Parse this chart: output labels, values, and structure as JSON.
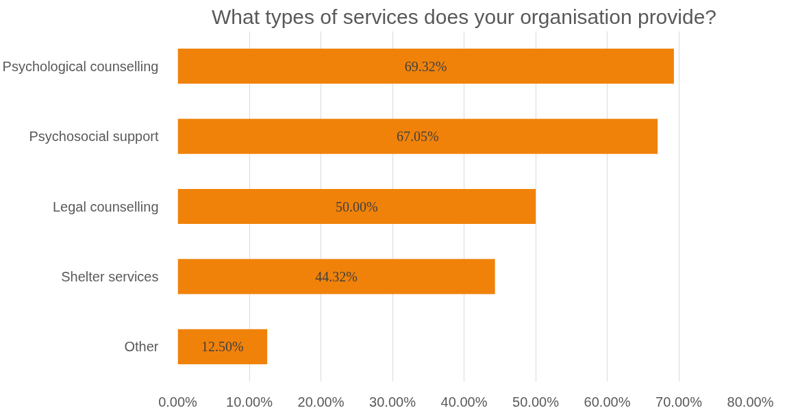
{
  "chart_data": {
    "type": "bar",
    "orientation": "horizontal",
    "title": "What types of services does your organisation provide?",
    "categories": [
      "Psychological counselling",
      "Psychosocial support",
      "Legal counselling",
      "Shelter services",
      "Other"
    ],
    "values": [
      69.32,
      67.05,
      50.0,
      44.32,
      12.5
    ],
    "value_labels": [
      "69.32%",
      "67.05%",
      "50.00%",
      "44.32%",
      "12.50%"
    ],
    "color": "#f0820a",
    "xlim": [
      0,
      80
    ],
    "xticks": [
      {
        "value": 0,
        "label": "0.00%"
      },
      {
        "value": 10,
        "label": "10.00%"
      },
      {
        "value": 20,
        "label": "20.00%"
      },
      {
        "value": 30,
        "label": "30.00%"
      },
      {
        "value": 40,
        "label": "40.00%"
      },
      {
        "value": 50,
        "label": "50.00%"
      },
      {
        "value": 60,
        "label": "60.00%"
      },
      {
        "value": 70,
        "label": "70.00%"
      },
      {
        "value": 80,
        "label": "80.00%"
      }
    ],
    "grid": "x"
  }
}
